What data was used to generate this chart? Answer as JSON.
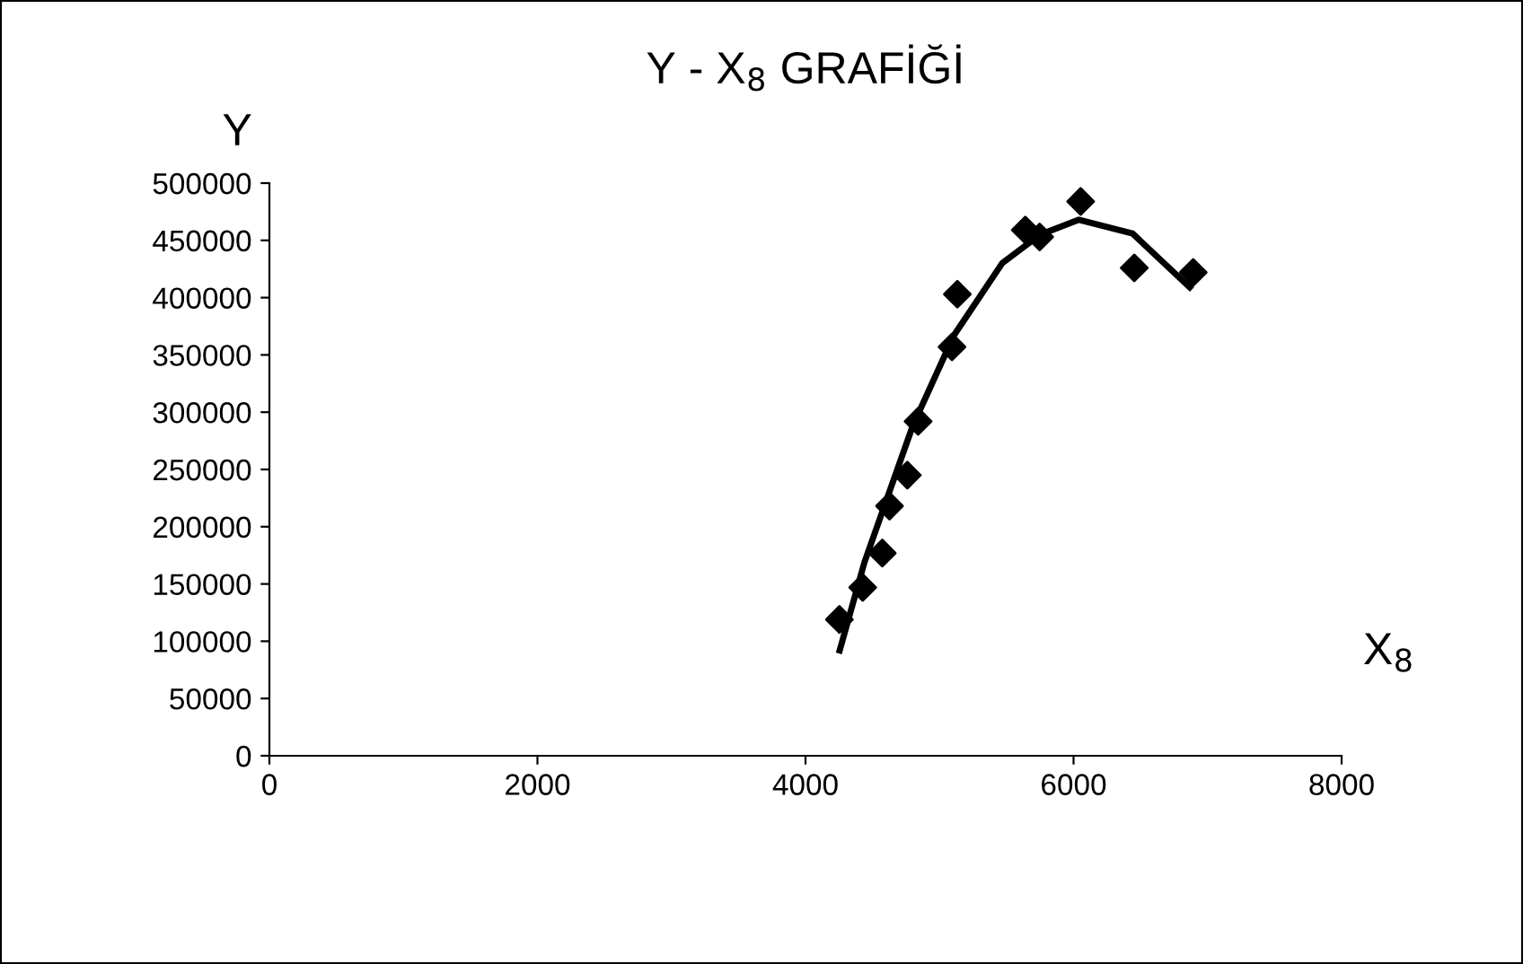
{
  "chart_data": {
    "type": "scatter",
    "title": "Y - X$_{8}$ GRAFİĞİ",
    "xlabel": "X$_{8}$",
    "ylabel": "Y",
    "xlim": [
      0,
      8000
    ],
    "xticks": [
      0,
      2000,
      4000,
      6000,
      8000
    ],
    "ylim": [
      0,
      500000
    ],
    "yticks": [
      0,
      50000,
      100000,
      150000,
      200000,
      250000,
      300000,
      350000,
      400000,
      450000,
      500000
    ],
    "grid": false,
    "legend": false,
    "marker": "diamond",
    "series": [
      {
        "color": "#000000",
        "x": [
          4253,
          4427,
          4573,
          4627,
          4760,
          4840,
          5093,
          5133,
          5640,
          5747,
          6053,
          6453,
          6893
        ],
        "values": [
          119000,
          147000,
          177000,
          218000,
          245000,
          292000,
          357000,
          403000,
          459000,
          453000,
          484000,
          426000,
          422000
        ]
      },
      {
        "type": "line",
        "color": "#000000",
        "marker": "none",
        "line_style": "solid",
        "x": [
          4255,
          4440,
          4800,
          5107,
          5467,
          5750,
          6040,
          6440,
          6867
        ],
        "values": [
          92000,
          169000,
          288000,
          367000,
          430000,
          455000,
          468000,
          456000,
          409000
        ]
      }
    ]
  }
}
